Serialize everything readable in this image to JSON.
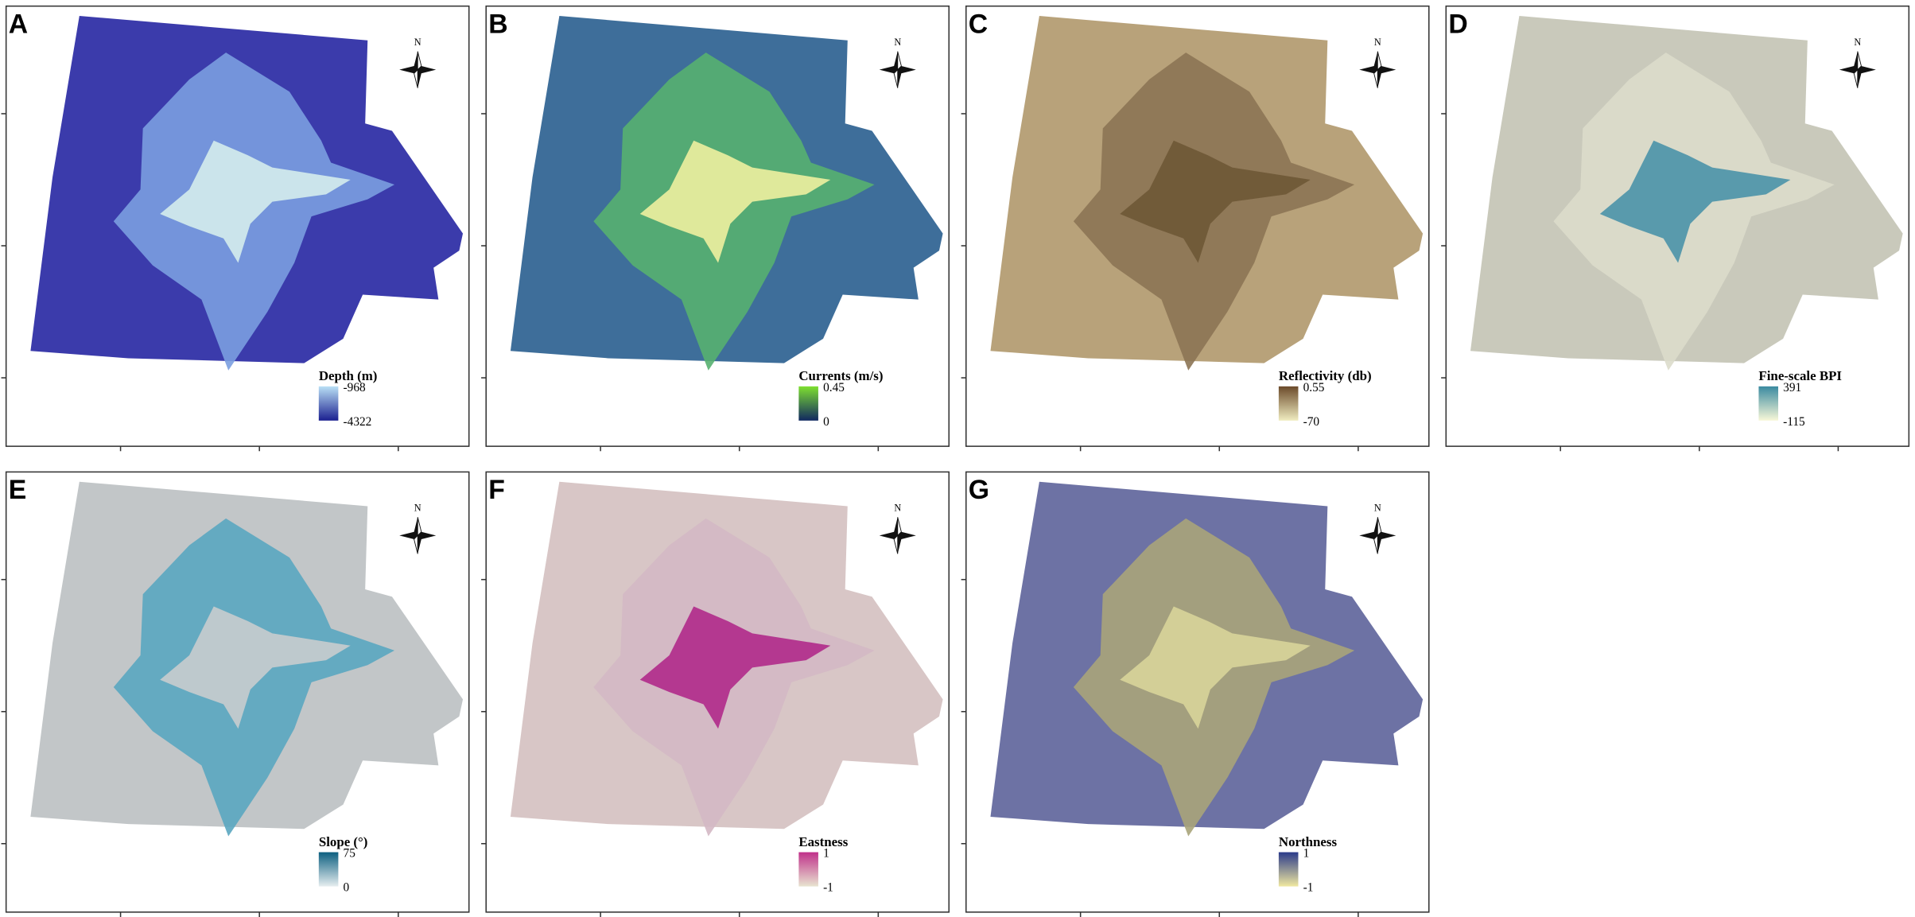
{
  "north_label": "N",
  "panels": [
    {
      "letter": "A",
      "legend_title": "Depth (m)",
      "legend_max": "-968",
      "legend_min": "-4322",
      "colors": {
        "base": "#3b3bab",
        "island": "#7b9fe0",
        "core": "#d5ecec"
      },
      "legend_colors": [
        "#b9e0f5",
        "#1b2090"
      ]
    },
    {
      "letter": "B",
      "legend_title": "Currents (m/s)",
      "legend_max": "0.45",
      "legend_min": "0",
      "colors": {
        "base": "#3e6e9a",
        "island": "#56b070",
        "core": "#eef0a0"
      },
      "legend_colors": [
        "#7ee030",
        "#102860"
      ]
    },
    {
      "letter": "C",
      "legend_title": "Reflectivity (db)",
      "legend_max": "0.55",
      "legend_min": "-70",
      "colors": {
        "base": "#b8a27a",
        "island": "#8c7454",
        "core": "#6e5836"
      },
      "legend_colors": [
        "#6b4a2a",
        "#f0ecc0"
      ]
    },
    {
      "letter": "D",
      "legend_title": "Fine-scale BPI",
      "legend_max": "391",
      "legend_min": "-115",
      "colors": {
        "base": "#c9c9bb",
        "island": "#dcdccb",
        "core": "#4a92a8"
      },
      "legend_colors": [
        "#3a8aa0",
        "#f8f8d8"
      ]
    },
    {
      "letter": "E",
      "legend_title": "Slope (°)",
      "legend_max": "75",
      "legend_min": "0",
      "colors": {
        "base": "#c2c6c8",
        "island": "#5aa6c0",
        "core": "#c8ccce"
      },
      "legend_colors": [
        "#0c5f80",
        "#e6eef0"
      ]
    },
    {
      "letter": "F",
      "legend_title": "Eastness",
      "legend_max": "1",
      "legend_min": "-1",
      "colors": {
        "base": "#d8c6c6",
        "island": "#d4b8c4",
        "core": "#b02a8a"
      },
      "legend_colors": [
        "#c0308a",
        "#e8e4d0"
      ]
    },
    {
      "letter": "G",
      "legend_title": "Northness",
      "legend_max": "1",
      "legend_min": "-1",
      "colors": {
        "base": "#6d72a4",
        "island": "#a9a47a",
        "core": "#d8d49a"
      },
      "legend_colors": [
        "#2a3a8a",
        "#f0e8a0"
      ]
    }
  ]
}
